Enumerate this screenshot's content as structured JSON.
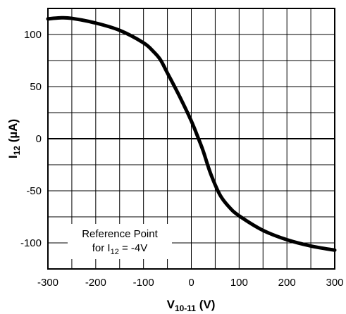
{
  "chart_data": {
    "type": "line",
    "xlabel": {
      "main": "V",
      "sub": "10-11",
      "unit": " (V)"
    },
    "ylabel": {
      "main": "I",
      "sub": "12",
      "unit": " (µA)"
    },
    "xlim": [
      -300,
      300
    ],
    "ylim": [
      -125,
      125
    ],
    "x_ticks": [
      -300,
      -200,
      -100,
      0,
      100,
      200,
      300
    ],
    "y_ticks": [
      -100,
      -50,
      0,
      50,
      100
    ],
    "x_tick_labels": [
      "-300",
      "-200",
      "-100",
      "0",
      "100",
      "200",
      "300"
    ],
    "y_tick_labels": [
      "-100",
      "-50",
      "0",
      "50",
      "100"
    ],
    "grid": true,
    "grid_x_step": 50,
    "grid_y_step": 25,
    "annotation": {
      "line1": "Reference Point",
      "line2_prefix": "for I",
      "line2_sub": "12",
      "line2_suffix": " = -4V"
    },
    "series": [
      {
        "color": "#000000",
        "x": [
          -300,
          -275,
          -250,
          -200,
          -150,
          -100,
          -80,
          -65,
          -50,
          -25,
          0,
          15,
          25,
          40,
          60,
          80,
          100,
          150,
          200,
          250,
          300
        ],
        "y": [
          115,
          116,
          115.5,
          111,
          104,
          92,
          84,
          76,
          63,
          41,
          17,
          0,
          -12,
          -33,
          -54,
          -66,
          -74,
          -88,
          -97,
          -103,
          -107
        ]
      }
    ]
  }
}
